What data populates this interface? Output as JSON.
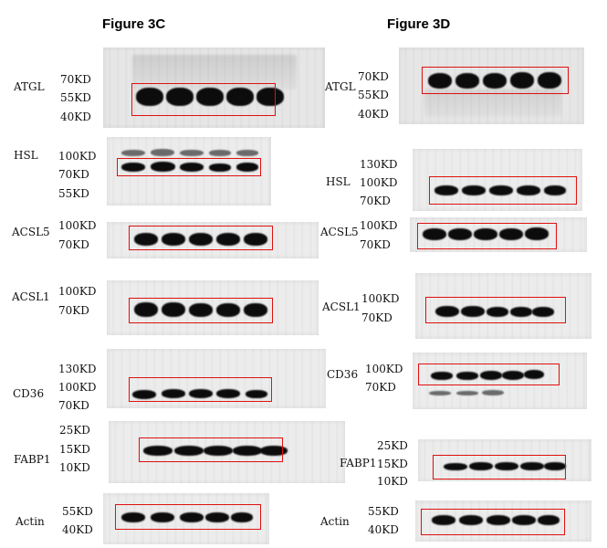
{
  "panels": [
    {
      "id": "3C",
      "title": "Figure 3C"
    },
    {
      "id": "3D",
      "title": "Figure 3D"
    }
  ],
  "rows": {
    "left": [
      {
        "protein": "ATGL",
        "markers": [
          "70KD",
          "55KD",
          "40KD"
        ]
      },
      {
        "protein": "HSL",
        "markers": [
          "100KD",
          "70KD",
          "55KD"
        ]
      },
      {
        "protein": "ACSL5",
        "markers": [
          "100KD",
          "70KD"
        ]
      },
      {
        "protein": "ACSL1",
        "markers": [
          "100KD",
          "70KD"
        ]
      },
      {
        "protein": "CD36",
        "markers": [
          "130KD",
          "100KD",
          "70KD"
        ]
      },
      {
        "protein": "FABP1",
        "markers": [
          "25KD",
          "15KD",
          "10KD"
        ]
      },
      {
        "protein": "Actin",
        "markers": [
          "55KD",
          "40KD"
        ]
      }
    ],
    "right": [
      {
        "protein": "ATGL",
        "markers": [
          "70KD",
          "55KD",
          "40KD"
        ]
      },
      {
        "protein": "HSL",
        "markers": [
          "130KD",
          "100KD",
          "70KD"
        ]
      },
      {
        "protein": "ACSL5",
        "markers": [
          "100KD",
          "70KD"
        ]
      },
      {
        "protein": "ACSL1",
        "markers": [
          "100KD",
          "70KD"
        ]
      },
      {
        "protein": "CD36",
        "markers": [
          "100KD",
          "70KD"
        ]
      },
      {
        "protein": "FABP1",
        "markers": [
          "25KD",
          "15KD",
          "10KD"
        ]
      },
      {
        "protein": "Actin",
        "markers": [
          "55KD",
          "40KD"
        ]
      }
    ]
  },
  "colors": {
    "highlight_box": "#e01010",
    "band": "#0c0c0c",
    "membrane": "#e6e6e6"
  }
}
